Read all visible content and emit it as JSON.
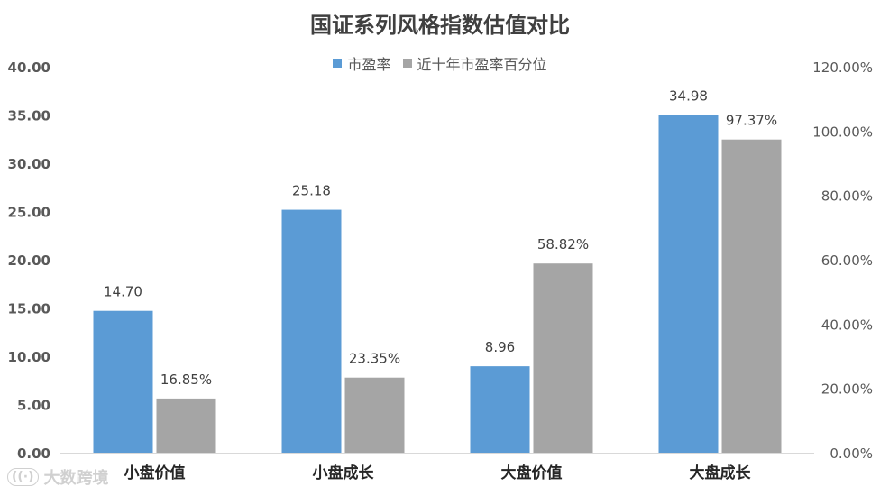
{
  "chart_data": {
    "type": "bar",
    "title": "国证系列风格指数估值对比",
    "categories": [
      "小盘价值",
      "小盘成长",
      "大盘价值",
      "大盘成长"
    ],
    "series": [
      {
        "name": "市盈率",
        "axis": "left",
        "values": [
          14.7,
          25.18,
          8.96,
          34.98
        ],
        "labels": [
          "14.70",
          "25.18",
          "8.96",
          "34.98"
        ],
        "color": "#5B9BD5"
      },
      {
        "name": "近十年市盈率百分位",
        "axis": "right",
        "values": [
          16.85,
          23.35,
          58.82,
          97.37
        ],
        "labels": [
          "16.85%",
          "23.35%",
          "58.82%",
          "97.37%"
        ],
        "color": "#A5A5A5"
      }
    ],
    "y_left": {
      "min": 0,
      "max": 40,
      "step": 5,
      "ticks": [
        "0.00",
        "5.00",
        "10.00",
        "15.00",
        "20.00",
        "25.00",
        "30.00",
        "35.00",
        "40.00"
      ]
    },
    "y_right": {
      "min": 0,
      "max": 120,
      "step": 20,
      "ticks": [
        "0.00%",
        "20.00%",
        "40.00%",
        "60.00%",
        "80.00%",
        "100.00%",
        "120.00%"
      ]
    },
    "legend_position": "top",
    "grid": false
  },
  "watermark": {
    "logo": "((·)",
    "text": "大数跨境"
  }
}
